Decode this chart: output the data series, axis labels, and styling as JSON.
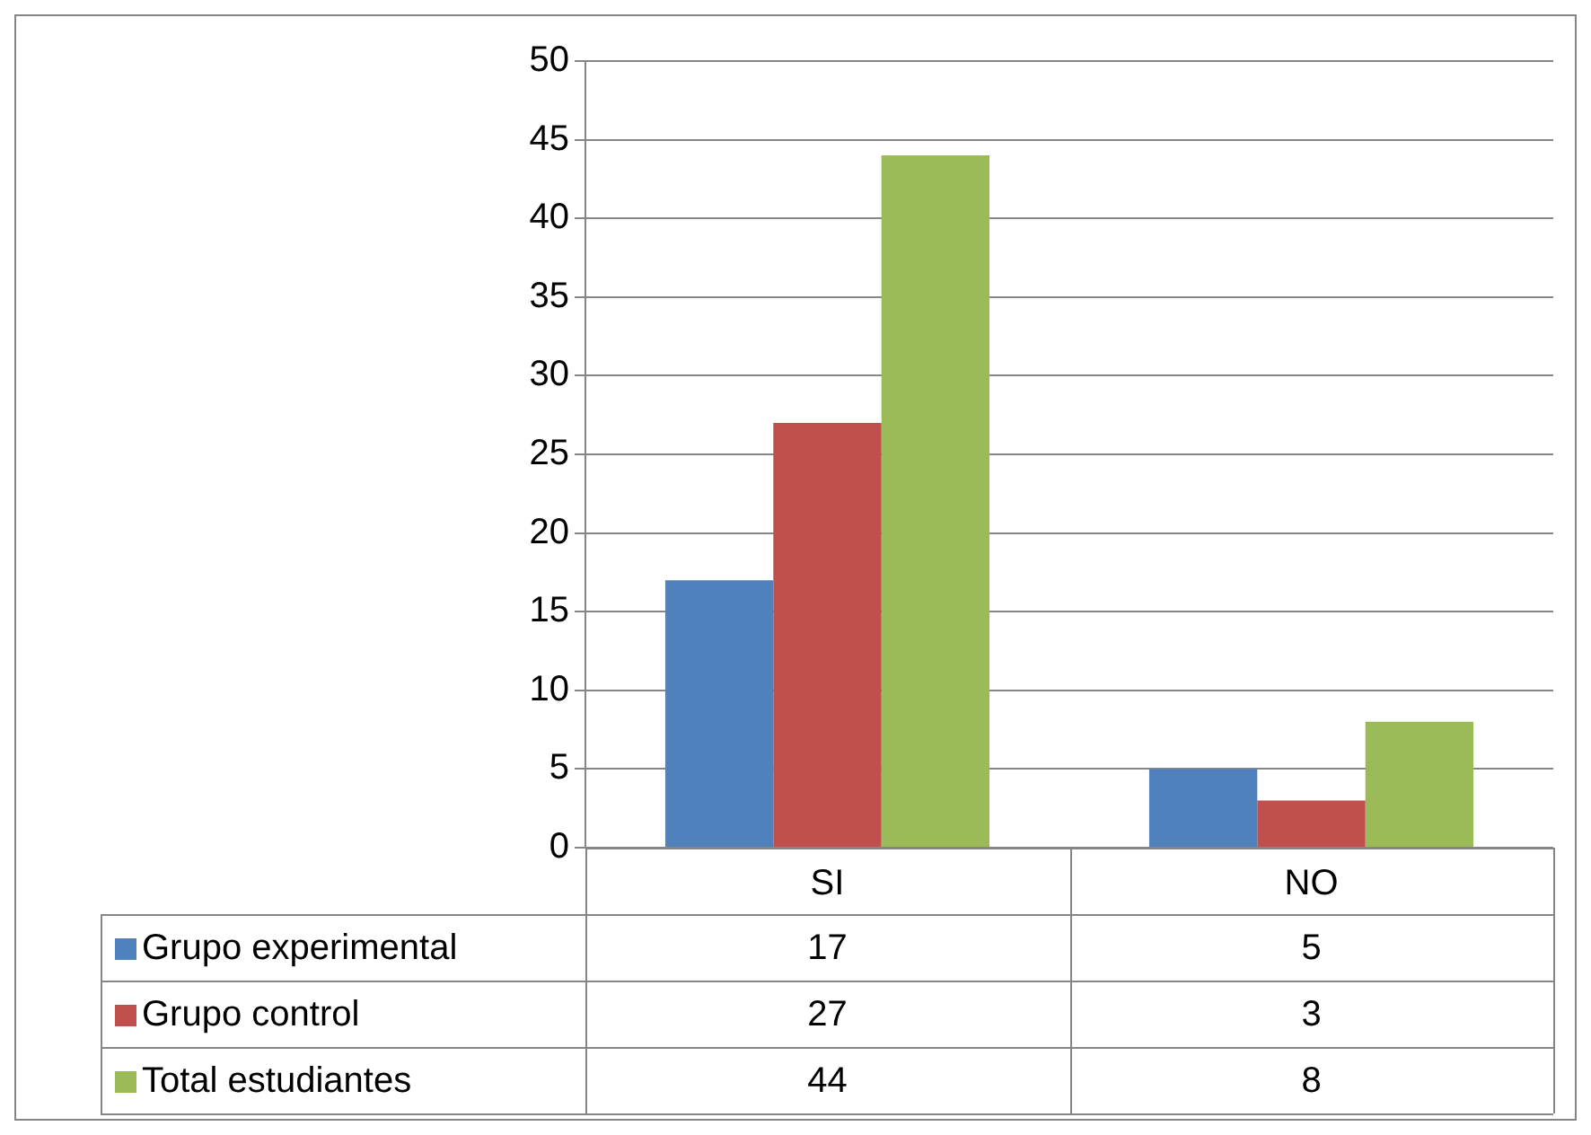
{
  "chart_data": {
    "type": "bar",
    "categories": [
      "SI",
      "NO"
    ],
    "series": [
      {
        "name": "Grupo experimental",
        "color": "#4f81bd",
        "values": [
          17,
          5
        ]
      },
      {
        "name": "Grupo control",
        "color": "#c0504d",
        "values": [
          27,
          3
        ]
      },
      {
        "name": "Total estudiantes",
        "color": "#9bbb59",
        "values": [
          44,
          8
        ]
      }
    ],
    "ylim": [
      0,
      50
    ],
    "yticks": [
      0,
      5,
      10,
      15,
      20,
      25,
      30,
      35,
      40,
      45,
      50
    ],
    "grid": "y",
    "data_labels": true,
    "legend": "bottom left"
  }
}
